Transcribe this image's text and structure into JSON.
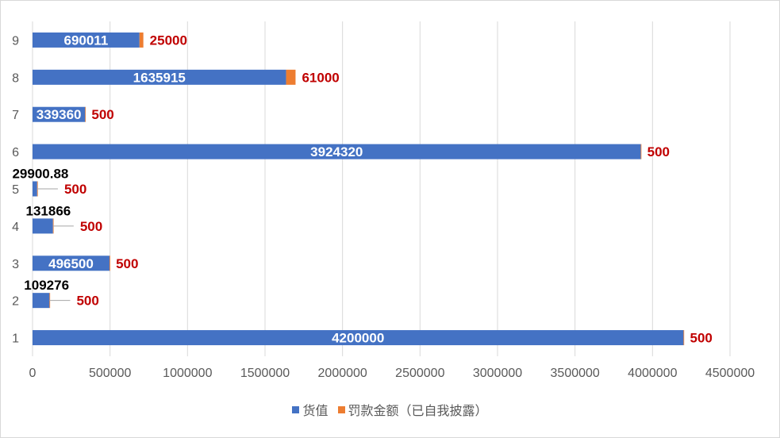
{
  "chart_data": {
    "type": "bar",
    "orientation": "horizontal",
    "stacked": true,
    "categories": [
      "1",
      "2",
      "3",
      "4",
      "5",
      "6",
      "7",
      "8",
      "9"
    ],
    "series": [
      {
        "name": "货值",
        "color": "#4472c4",
        "values": [
          4200000,
          109276,
          496500,
          131866,
          29900.88,
          3924320,
          339360,
          1635915,
          690011
        ],
        "labels": [
          "4200000",
          "109276",
          "496500",
          "131866",
          "29900.88",
          "3924320",
          "339360",
          "1635915",
          "690011"
        ]
      },
      {
        "name": "罚款金额（已自我披露）",
        "color": "#ed7d31",
        "values": [
          500,
          500,
          500,
          500,
          500,
          500,
          500,
          61000,
          25000
        ],
        "labels": [
          "500",
          "500",
          "500",
          "500",
          "500",
          "500",
          "500",
          "61000",
          "25000"
        ]
      }
    ],
    "xlim": [
      0,
      4500000
    ],
    "xticks": [
      "0",
      "500000",
      "1000000",
      "1500000",
      "2000000",
      "2500000",
      "3000000",
      "3500000",
      "4000000",
      "4500000"
    ],
    "grid": true,
    "legend_position": "bottom",
    "title": "",
    "xlabel": "",
    "ylabel": ""
  }
}
